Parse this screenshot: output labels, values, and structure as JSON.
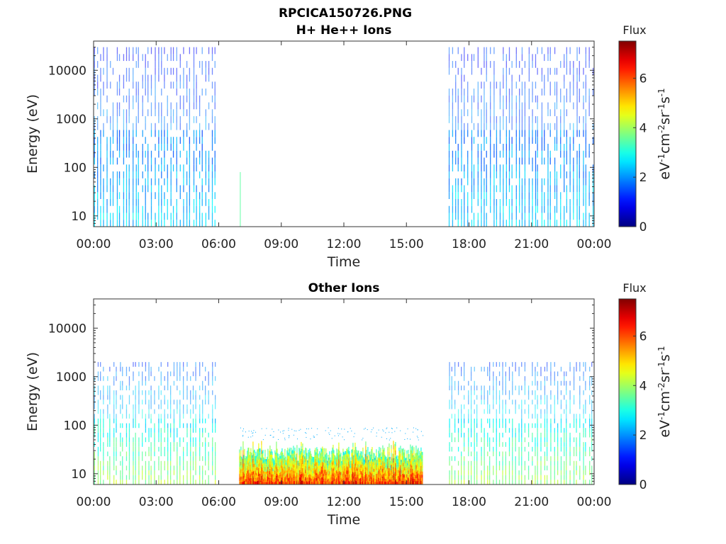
{
  "figure": {
    "title": "RPCICA150726.PNG"
  },
  "chart_data": [
    {
      "type": "heatmap",
      "title": "H+ He++ Ions",
      "xlabel": "Time",
      "ylabel": "Energy (eV)",
      "x_ticks": [
        "00:00",
        "03:00",
        "06:00",
        "09:00",
        "12:00",
        "15:00",
        "18:00",
        "21:00",
        "00:00"
      ],
      "xlim_hours": [
        0,
        24
      ],
      "y_scale": "log",
      "ylim": [
        6,
        40000
      ],
      "y_ticks": [
        {
          "value": 10,
          "label": "10"
        },
        {
          "value": 100,
          "label": "100"
        },
        {
          "value": 1000,
          "label": "1000"
        },
        {
          "value": 10000,
          "label": "10000"
        }
      ],
      "colorbar": {
        "title": "Flux",
        "label": "eV-1cm-2sr-1s-1",
        "range": [
          0,
          7.5
        ],
        "ticks": [
          0,
          2,
          4,
          6
        ],
        "colormap": "jet"
      },
      "data_segments": [
        {
          "start_hours": 0.0,
          "end_hours": 5.9,
          "description_level_low": 2.5,
          "level_high": 1.2,
          "energy_max": 30000
        },
        {
          "start_hours": 7.0,
          "end_hours": 7.05,
          "level": 3.5,
          "energy_max": 80
        },
        {
          "start_hours": 17.0,
          "end_hours": 24.0,
          "level_low": 2.5,
          "level_high": 1.2,
          "energy_max": 30000
        }
      ]
    },
    {
      "type": "heatmap",
      "title": "Other Ions",
      "xlabel": "Time",
      "ylabel": "Energy (eV)",
      "x_ticks": [
        "00:00",
        "03:00",
        "06:00",
        "09:00",
        "12:00",
        "15:00",
        "18:00",
        "21:00",
        "00:00"
      ],
      "xlim_hours": [
        0,
        24
      ],
      "y_scale": "log",
      "ylim": [
        6,
        40000
      ],
      "y_ticks": [
        {
          "value": 10,
          "label": "10"
        },
        {
          "value": 100,
          "label": "100"
        },
        {
          "value": 1000,
          "label": "1000"
        },
        {
          "value": 10000,
          "label": "10000"
        }
      ],
      "colorbar": {
        "title": "Flux",
        "label": "eV-1cm-2sr-1s-1",
        "range": [
          0,
          7.5
        ],
        "ticks": [
          0,
          2,
          4,
          6
        ],
        "colormap": "jet"
      },
      "data_segments": [
        {
          "start_hours": 0.0,
          "end_hours": 5.9,
          "level_low": 4.0,
          "level_high": 1.5,
          "energy_max": 2000
        },
        {
          "start_hours": 7.0,
          "end_hours": 15.8,
          "level_low": 6.0,
          "level_high": 3.0,
          "energy_max": 80
        },
        {
          "start_hours": 17.0,
          "end_hours": 24.0,
          "level_low": 4.0,
          "level_high": 1.5,
          "energy_max": 2000
        }
      ]
    }
  ]
}
